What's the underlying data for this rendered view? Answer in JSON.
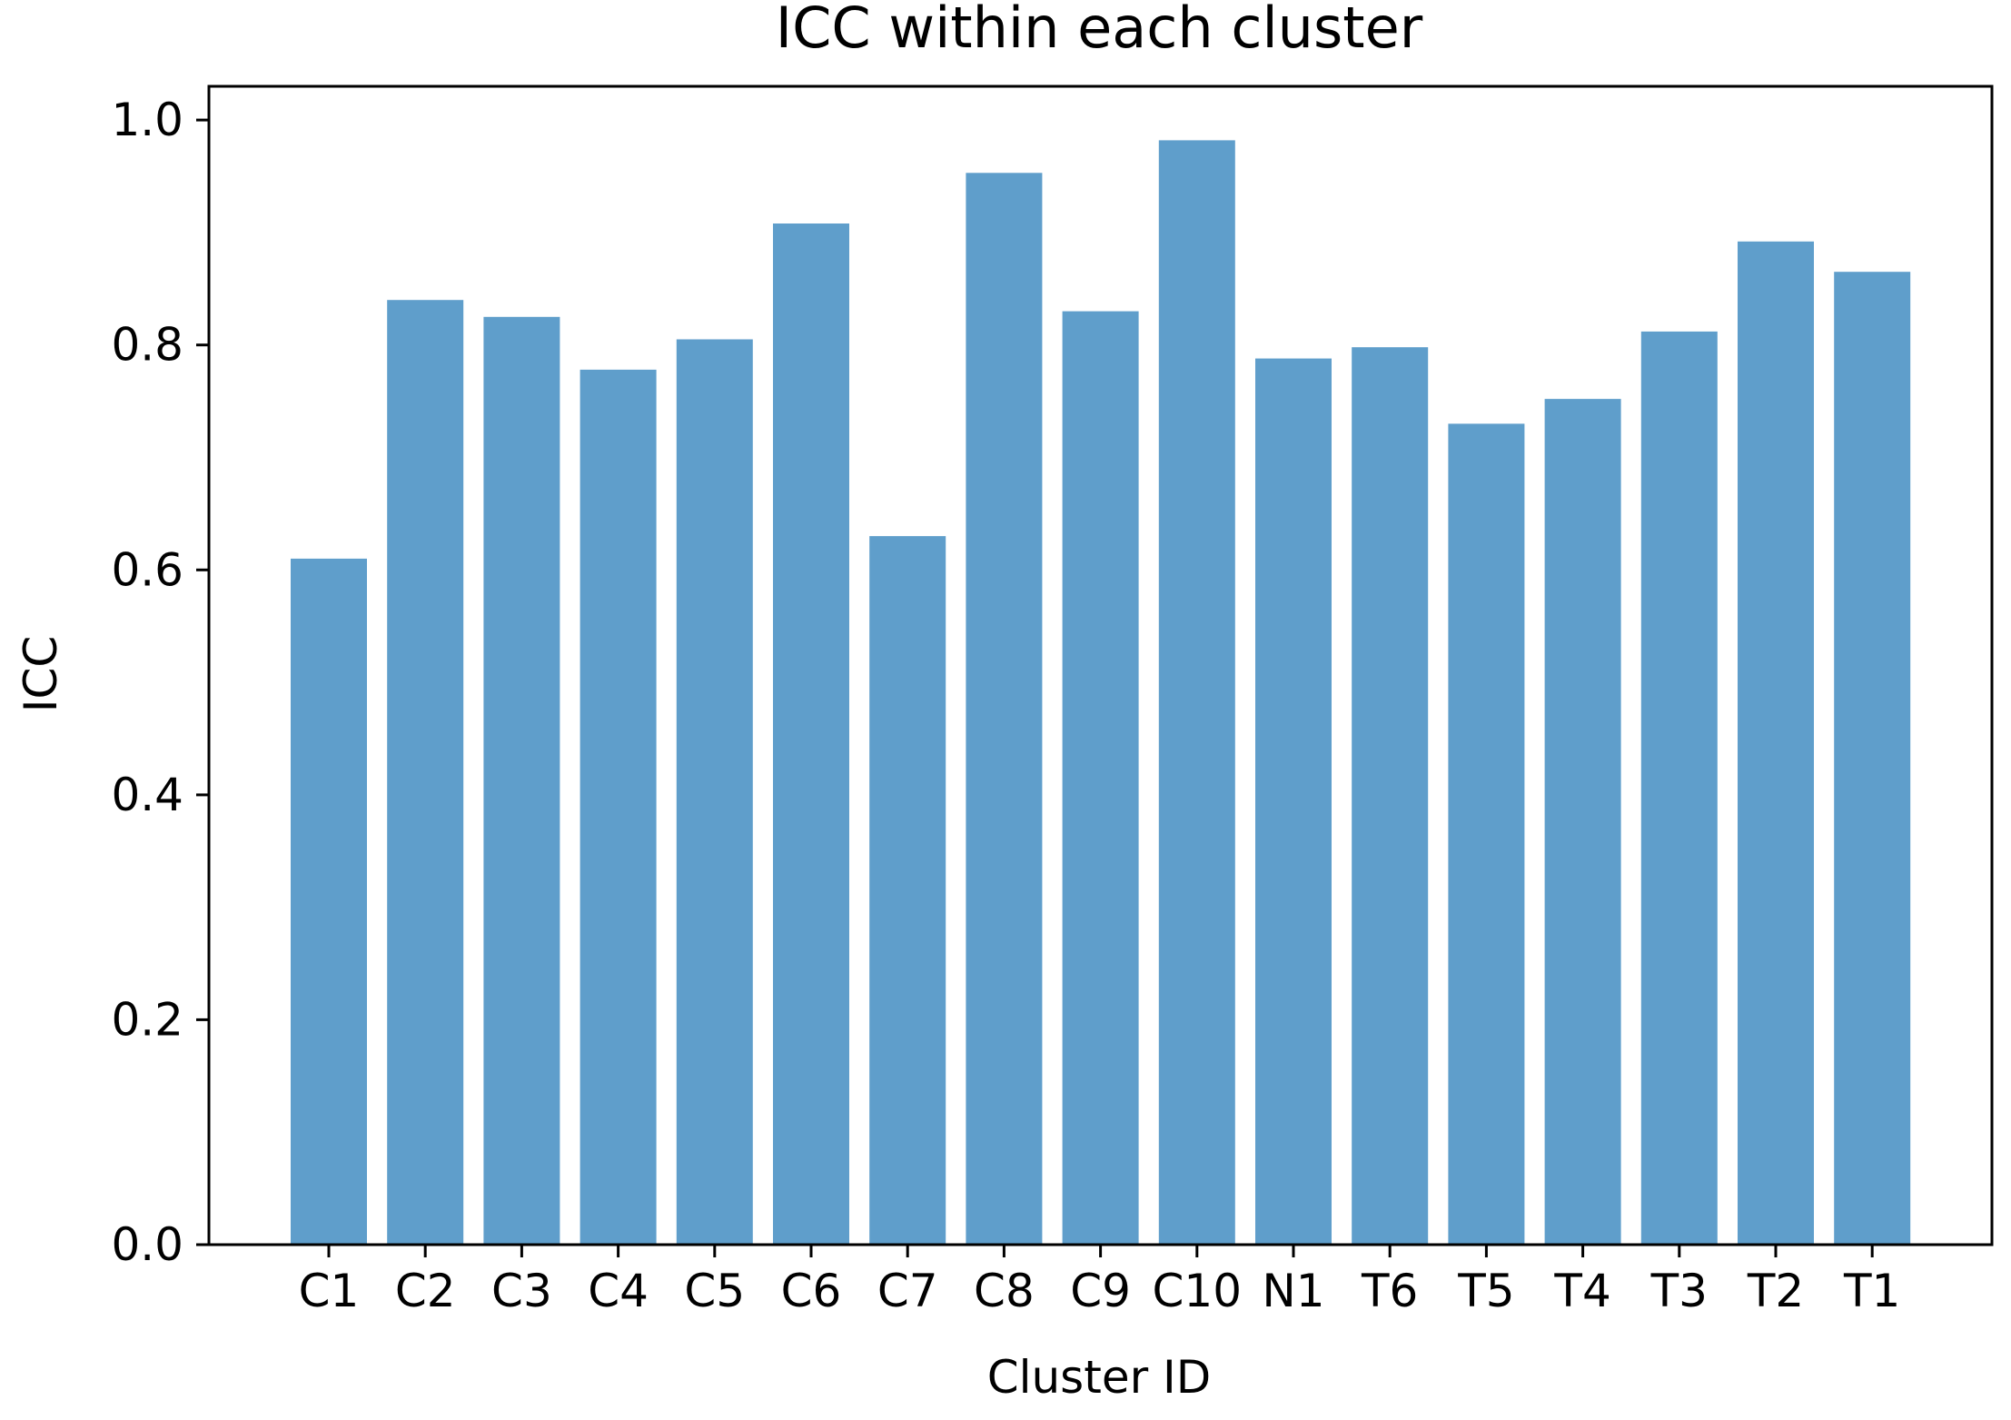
{
  "chart_data": {
    "type": "bar",
    "title": "ICC within each cluster",
    "xlabel": "Cluster ID",
    "ylabel": "ICC",
    "categories": [
      "C1",
      "C2",
      "C3",
      "C4",
      "C5",
      "C6",
      "C7",
      "C8",
      "C9",
      "C10",
      "N1",
      "T6",
      "T5",
      "T4",
      "T3",
      "T2",
      "T1"
    ],
    "values": [
      0.61,
      0.84,
      0.825,
      0.778,
      0.805,
      0.908,
      0.63,
      0.953,
      0.83,
      0.982,
      0.788,
      0.798,
      0.73,
      0.752,
      0.812,
      0.892,
      0.865
    ],
    "ylim": [
      0,
      1.03
    ],
    "yticks": [
      0.0,
      0.2,
      0.4,
      0.6,
      0.8,
      1.0
    ],
    "ytick_labels": [
      "0.0",
      "0.2",
      "0.4",
      "0.6",
      "0.8",
      "1.0"
    ],
    "grid": false,
    "bar_color": "#5f9ecb"
  }
}
